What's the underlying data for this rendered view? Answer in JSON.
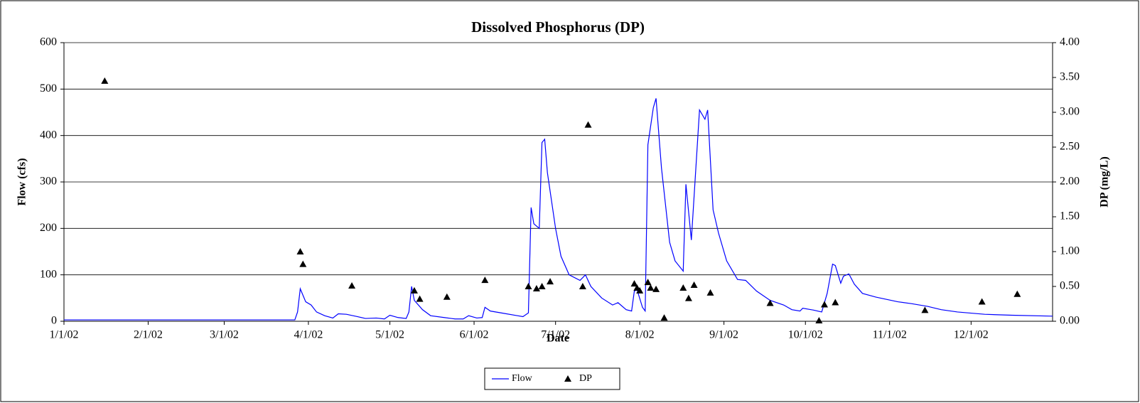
{
  "chart_data": {
    "type": "line",
    "title": "Dissolved Phosphorus (DP)",
    "x_label": "Date",
    "y_label": "Flow (cfs)",
    "y2_label": "DP (mg/L)",
    "xlim": [
      "1/1/02",
      "12/31/02"
    ],
    "xticks": [
      "1/1/02",
      "2/1/02",
      "3/1/02",
      "4/1/02",
      "5/1/02",
      "6/1/02",
      "7/1/02",
      "8/1/02",
      "9/1/02",
      "10/1/02",
      "11/1/02",
      "12/1/02"
    ],
    "ylim": [
      0,
      600
    ],
    "yticks": [
      0,
      100,
      200,
      300,
      400,
      500,
      600
    ],
    "y2lim": [
      0,
      4
    ],
    "y2ticks": [
      {
        "value": 0,
        "label": "0.00"
      },
      {
        "value": 0.5,
        "label": "0.50"
      },
      {
        "value": 1,
        "label": "1.00"
      },
      {
        "value": 1.5,
        "label": "1.50"
      },
      {
        "value": 2,
        "label": "2.00"
      },
      {
        "value": 2.5,
        "label": "2.50"
      },
      {
        "value": 3,
        "label": "3.00"
      },
      {
        "value": 3.5,
        "label": "3.50"
      },
      {
        "value": 4,
        "label": "4.00"
      }
    ],
    "grid": true,
    "legend": "bottom",
    "series": [
      {
        "name": "Flow",
        "type": "line",
        "color": "#0000ff",
        "x": [
          "1/1/02",
          "3/27/02",
          "3/28/02",
          "3/29/02",
          "3/31/02",
          "4/2/02",
          "4/4/02",
          "4/7/02",
          "4/10/02",
          "4/12/02",
          "4/15/02",
          "4/19/02",
          "4/22/02",
          "4/26/02",
          "4/29/02",
          "5/1/02",
          "5/4/02",
          "5/7/02",
          "5/8/02",
          "5/9/02",
          "5/10/02",
          "5/13/02",
          "5/16/02",
          "5/21/02",
          "5/25/02",
          "5/28/02",
          "5/30/02",
          "6/2/02",
          "6/4/02",
          "6/5/02",
          "6/7/02",
          "6/11/02",
          "6/17/02",
          "6/19/02",
          "6/21/02",
          "6/22/02",
          "6/23/02",
          "6/25/02",
          "6/26/02",
          "6/27/02",
          "6/28/02",
          "7/1/02",
          "7/3/02",
          "7/6/02",
          "7/10/02",
          "7/12/02",
          "7/14/02",
          "7/18/02",
          "7/22/02",
          "7/24/02",
          "7/27/02",
          "7/29/02",
          "7/30/02",
          "7/31/02",
          "8/2/02",
          "8/3/02",
          "8/4/02",
          "8/6/02",
          "8/7/02",
          "8/9/02",
          "8/12/02",
          "8/14/02",
          "8/17/02",
          "8/18/02",
          "8/20/02",
          "8/23/02",
          "8/25/02",
          "8/26/02",
          "8/28/02",
          "8/30/02",
          "9/2/02",
          "9/6/02",
          "9/9/02",
          "9/13/02",
          "9/18/02",
          "9/23/02",
          "9/26/02",
          "9/29/02",
          "9/30/02",
          "10/4/02",
          "10/7/02",
          "10/9/02",
          "10/11/02",
          "10/12/02",
          "10/14/02",
          "10/15/02",
          "10/17/02",
          "10/19/02",
          "10/22/02",
          "10/27/02",
          "11/4/02",
          "11/9/02",
          "11/15/02",
          "11/20/02",
          "11/26/02",
          "12/6/02",
          "12/16/02",
          "12/31/02"
        ],
        "values": [
          3,
          3,
          20,
          70,
          42,
          35,
          20,
          12,
          7,
          16,
          15,
          10,
          6,
          7,
          5,
          13,
          8,
          6,
          20,
          75,
          45,
          25,
          12,
          8,
          5,
          5,
          12,
          7,
          8,
          30,
          22,
          18,
          12,
          10,
          18,
          245,
          210,
          200,
          385,
          392,
          320,
          200,
          140,
          100,
          88,
          100,
          75,
          50,
          35,
          40,
          25,
          22,
          65,
          68,
          30,
          22,
          380,
          460,
          480,
          330,
          170,
          130,
          108,
          295,
          175,
          455,
          435,
          455,
          240,
          190,
          130,
          90,
          88,
          65,
          45,
          35,
          25,
          22,
          28,
          24,
          20,
          60,
          123,
          120,
          82,
          97,
          102,
          80,
          60,
          52,
          42,
          38,
          32,
          25,
          20,
          15,
          13,
          11
        ]
      },
      {
        "name": "DP",
        "type": "scatter",
        "axis": "y2",
        "color": "#000000",
        "x": [
          "1/16/02",
          "3/29/02",
          "3/30/02",
          "4/17/02",
          "5/10/02",
          "5/12/02",
          "5/22/02",
          "6/5/02",
          "6/21/02",
          "6/24/02",
          "6/26/02",
          "6/29/02",
          "7/11/02",
          "7/13/02",
          "7/30/02",
          "7/31/02",
          "8/1/02",
          "8/4/02",
          "8/5/02",
          "8/7/02",
          "8/10/02",
          "8/17/02",
          "8/19/02",
          "8/21/02",
          "8/27/02",
          "9/18/02",
          "10/6/02",
          "10/8/02",
          "10/12/02",
          "11/14/02",
          "12/5/02",
          "12/18/02"
        ],
        "values": [
          3.45,
          1.0,
          0.82,
          0.51,
          0.44,
          0.32,
          0.35,
          0.59,
          0.5,
          0.47,
          0.5,
          0.57,
          0.5,
          2.82,
          0.54,
          0.48,
          0.44,
          0.56,
          0.48,
          0.46,
          0.05,
          0.48,
          0.33,
          0.52,
          0.41,
          0.26,
          0.01,
          0.24,
          0.27,
          0.16,
          0.28,
          0.39
        ]
      }
    ]
  }
}
